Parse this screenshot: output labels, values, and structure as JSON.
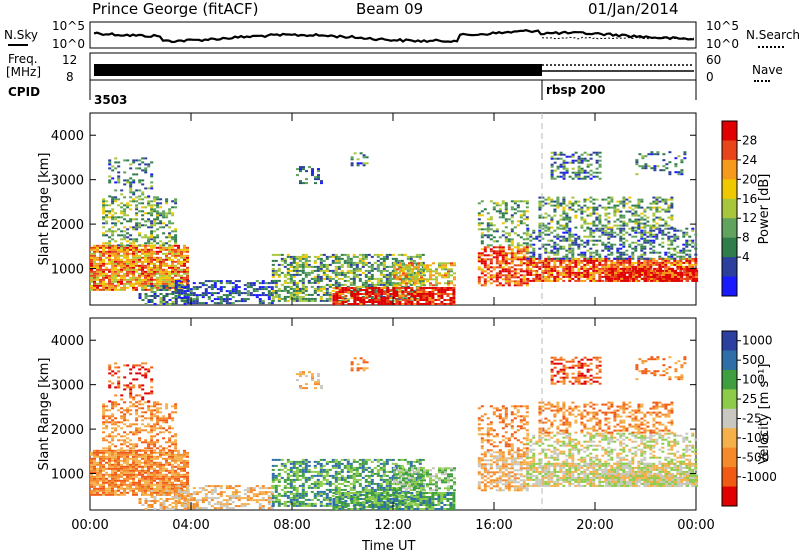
{
  "header": {
    "station": "Prince George (fitACF)",
    "beam": "Beam 09",
    "date": "01/Jan/2014"
  },
  "panels": {
    "nsky": {
      "label": "N.Sky",
      "tick_top": "10^5",
      "tick_bottom": "10^0",
      "right_label": "N.Search",
      "right_tick_top": "10^5",
      "right_tick_bottom": "10^0"
    },
    "freq": {
      "label_top": "Freq.",
      "label_bottom": "[MHz]",
      "tick_top": "12",
      "tick_bottom": "8",
      "right_label": "Nave",
      "right_tick_top": "60",
      "right_tick_bottom": "0"
    },
    "cpid": {
      "label": "CPID",
      "entries": [
        "3503",
        "rbsp 200"
      ]
    }
  },
  "colors": {
    "power_scale": [
      "#1a1aff",
      "#2c3f9c",
      "#2e7d4a",
      "#5fa35f",
      "#a8c63c",
      "#f0c800",
      "#f59a1a",
      "#e8461a",
      "#e00000"
    ],
    "velocity_scale": [
      "#e00000",
      "#f05a14",
      "#f58a2a",
      "#f5b04a",
      "#c8c8c0",
      "#8ccc4a",
      "#3f9e3f",
      "#2f6fa8",
      "#2a3fa0"
    ]
  },
  "chart_data": [
    {
      "type": "heatmap",
      "name": "power",
      "xlabel": "",
      "ylabel": "Slant Range [km]",
      "xlim": [
        "00:00",
        "00:00"
      ],
      "ylim": [
        180,
        4500
      ],
      "yticks": [
        "1000",
        "2000",
        "3000",
        "4000"
      ],
      "colorbar": {
        "label": "Power [dB]",
        "ticks": [
          "4",
          "8",
          "12",
          "16",
          "20",
          "24",
          "28"
        ]
      }
    },
    {
      "type": "heatmap",
      "name": "velocity",
      "xlabel": "Time UT",
      "ylabel": "Slant Range [km]",
      "xticks": [
        "00:00",
        "04:00",
        "08:00",
        "12:00",
        "16:00",
        "20:00",
        "00:00"
      ],
      "ylim": [
        180,
        4500
      ],
      "yticks": [
        "1000",
        "2000",
        "3000",
        "4000"
      ],
      "colorbar": {
        "label": "Velocity [m s⁻¹]",
        "ticks": [
          "1000",
          "500",
          "100",
          "25",
          "-25",
          "-100",
          "-500",
          "-1000"
        ]
      }
    }
  ]
}
